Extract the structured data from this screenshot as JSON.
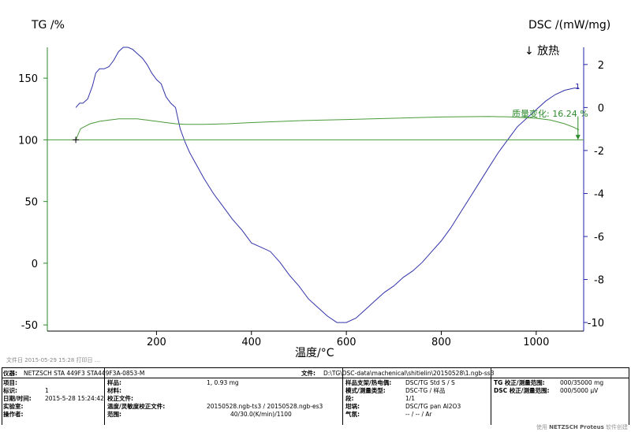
{
  "chart_data": {
    "type": "line",
    "xlabel": "温度/°C",
    "ylabel_left": "TG /%",
    "ylabel_right": "DSC /(mW/mg)",
    "exo_label": "↓ 放热",
    "mass_change_label": "质量变化: 16.24 %",
    "xlim": [
      -30,
      1100
    ],
    "ylim_left": [
      -55,
      175
    ],
    "ylim_right": [
      -10.4,
      2.8
    ],
    "xticks": [
      200,
      400,
      600,
      800,
      1000
    ],
    "yticks_left": [
      150,
      100,
      50,
      0,
      -50
    ],
    "yticks_right": [
      2,
      0,
      -2,
      -4,
      -6,
      -8,
      -10
    ],
    "series": [
      {
        "axis": "right",
        "color": "#3333aa",
        "x": [
          30,
          38,
          45,
          55,
          65,
          72,
          80,
          90,
          100,
          110,
          120,
          130,
          140,
          150,
          160,
          170,
          180,
          190,
          200,
          210,
          220,
          230,
          240,
          250,
          260,
          270,
          280,
          290,
          300,
          320,
          340,
          360,
          380,
          400,
          420,
          440,
          460,
          480,
          500,
          520,
          540,
          560,
          580,
          600,
          620,
          640,
          660,
          680,
          700,
          720,
          740,
          760,
          780,
          800,
          820,
          840,
          860,
          880,
          900,
          920,
          940,
          960,
          980,
          1000,
          1020,
          1040,
          1060,
          1080,
          1090
        ],
        "y": [
          0.0,
          0.2,
          0.2,
          0.4,
          1.0,
          1.6,
          1.8,
          1.8,
          1.9,
          2.2,
          2.6,
          2.8,
          2.8,
          2.7,
          2.5,
          2.3,
          2.0,
          1.6,
          1.3,
          1.1,
          0.5,
          0.2,
          0.0,
          -1.0,
          -1.6,
          -2.1,
          -2.5,
          -2.9,
          -3.3,
          -4.0,
          -4.6,
          -5.2,
          -5.7,
          -6.3,
          -6.5,
          -6.7,
          -7.2,
          -7.8,
          -8.3,
          -8.9,
          -9.3,
          -9.7,
          -10.0,
          -10.0,
          -9.8,
          -9.4,
          -9.0,
          -8.6,
          -8.3,
          -7.9,
          -7.6,
          -7.2,
          -6.7,
          -6.2,
          -5.6,
          -4.9,
          -4.2,
          -3.5,
          -2.8,
          -2.1,
          -1.5,
          -0.9,
          -0.5,
          -0.1,
          0.3,
          0.6,
          0.8,
          0.9,
          0.9
        ]
      },
      {
        "axis": "left",
        "color": "#4a9a3a",
        "x": [
          30,
          40,
          50,
          60,
          70,
          80,
          90,
          100,
          110,
          120,
          130,
          140,
          150,
          160,
          170,
          180,
          190,
          200,
          220,
          240,
          260,
          280,
          300,
          350,
          400,
          500,
          600,
          700,
          800,
          900,
          950,
          1000,
          1030,
          1060,
          1080,
          1090
        ],
        "y": [
          100,
          109,
          111,
          113,
          114,
          115,
          115.5,
          116,
          116.5,
          117,
          117,
          117,
          117,
          117,
          116.5,
          116,
          115.5,
          115,
          114,
          113,
          112.5,
          112.5,
          112.5,
          113,
          114,
          115.5,
          116.5,
          117.5,
          118.5,
          119,
          118.5,
          117.5,
          116,
          113,
          110,
          108
        ]
      },
      {
        "axis": "left",
        "color": "#4a9a3a",
        "x": [
          -30,
          1100
        ],
        "y": [
          100,
          100
        ]
      }
    ]
  },
  "date_text": "文件日 2015-05-29 15:28  打印日 ...",
  "info": {
    "instrument_k": "仪器:",
    "instrument_v": "NETZSCH STA 449F3 STA449F3A-0853-M",
    "file_k": "文件:",
    "file_v": "D:\\TG\\DSC-data\\machenical\\shitielin\\20150528\\1.ngb-ss3",
    "project_k": "项目:",
    "project_v": "",
    "sample_k": "样品:",
    "sample_v": "1, 0.93 mg",
    "crucible_k": "样品支架/热电偶:",
    "crucible_v": "DSC/TG Std S / S",
    "tgrange_k": "TG 校正/测量范围:",
    "tgrange_v": "000/35000 mg",
    "id_k": "标识:",
    "id_v": "1",
    "material_k": "材料:",
    "material_v": "",
    "mode_k": "模式/测量类型:",
    "mode_v": "DSC-TG / 样品",
    "dscrange_k": "DSC 校正/测量范围:",
    "dscrange_v": "000/5000 μV",
    "datetime_k": "日期/时间:",
    "datetime_v": "2015-5-28 15:24:42",
    "corrfile_k": "校正文件:",
    "corrfile_v": "",
    "segment_k": "段:",
    "segment_v": "1/1",
    "lab_k": "实验室:",
    "lab_v": "",
    "tempcal_k": "温度/灵敏度校正文件:",
    "tempcal_v": "20150528.ngb-ts3 / 20150528.ngb-es3",
    "pan_k": "坩埚:",
    "pan_v": "DSC/TG pan Al2O3",
    "operator_k": "操作者:",
    "operator_v": "",
    "range_k": "范围:",
    "range_v": "40/30.0(K/min)/1100",
    "atm_k": "气氛:",
    "atm_v": "-- / -- / Ar"
  },
  "footer_prefix": "使用",
  "footer_brand": "NETZSCH Proteus",
  "footer_suffix": "软件创建"
}
